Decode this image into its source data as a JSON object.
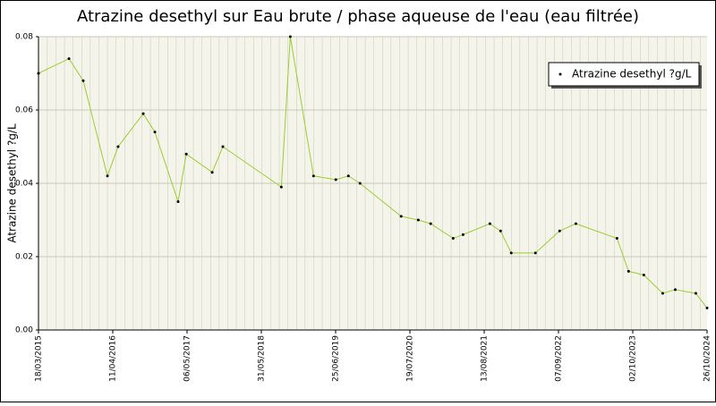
{
  "chart_data": {
    "type": "line",
    "title": "Atrazine desethyl sur Eau brute / phase aqueuse de l'eau (eau filtrée)",
    "y_label": "Atrazine desethyl ?g/L",
    "x": [
      "2015-03-18",
      "2015-08-25",
      "2015-11-08",
      "2016-03-14",
      "2016-05-09",
      "2016-09-18",
      "2016-11-18",
      "2017-03-20",
      "2017-05-02",
      "2017-09-15",
      "2017-11-10",
      "2018-09-13",
      "2018-10-30",
      "2019-03-01",
      "2019-06-26",
      "2019-08-31",
      "2019-10-31",
      "2020-06-03",
      "2020-09-01",
      "2020-11-05",
      "2021-03-03",
      "2021-04-24",
      "2021-09-12",
      "2021-11-07",
      "2022-01-02",
      "2022-05-09",
      "2022-09-13",
      "2022-12-07",
      "2023-07-11",
      "2023-09-10",
      "2023-11-29",
      "2024-03-07",
      "2024-05-12",
      "2024-08-28",
      "2024-10-26"
    ],
    "series": [
      {
        "name": "Atrazine desethyl ?g/L",
        "color": "#9acd32",
        "marker_color": "#000000",
        "values": [
          0.07,
          0.074,
          0.068,
          0.042,
          0.05,
          0.059,
          0.054,
          0.035,
          0.048,
          0.043,
          0.05,
          0.039,
          0.08,
          0.042,
          0.041,
          0.042,
          0.04,
          0.031,
          0.03,
          0.029,
          0.025,
          0.026,
          0.029,
          0.027,
          0.021,
          0.021,
          0.027,
          0.029,
          0.025,
          0.016,
          0.015,
          0.01,
          0.011,
          0.01,
          0.006
        ]
      }
    ],
    "xlim": [
      "2015-03-18",
      "2024-10-26"
    ],
    "xticks": [
      {
        "value": "2015-03-18",
        "label": "18/03/2015"
      },
      {
        "value": "2016-04-11",
        "label": "11/04/2016"
      },
      {
        "value": "2017-05-06",
        "label": "06/05/2017"
      },
      {
        "value": "2018-05-31",
        "label": "31/05/2018"
      },
      {
        "value": "2019-06-25",
        "label": "25/06/2019"
      },
      {
        "value": "2020-07-19",
        "label": "19/07/2020"
      },
      {
        "value": "2021-08-13",
        "label": "13/08/2021"
      },
      {
        "value": "2022-09-07",
        "label": "07/09/2022"
      },
      {
        "value": "2023-10-02",
        "label": "02/10/2023"
      },
      {
        "value": "2024-10-26",
        "label": "26/10/2024"
      }
    ],
    "ylim": [
      0,
      0.08
    ],
    "yticks": [
      {
        "value": 0,
        "label": "0.00"
      },
      0.02,
      0.04,
      0.06,
      0.08
    ],
    "grid": true,
    "legend": "top-right"
  }
}
